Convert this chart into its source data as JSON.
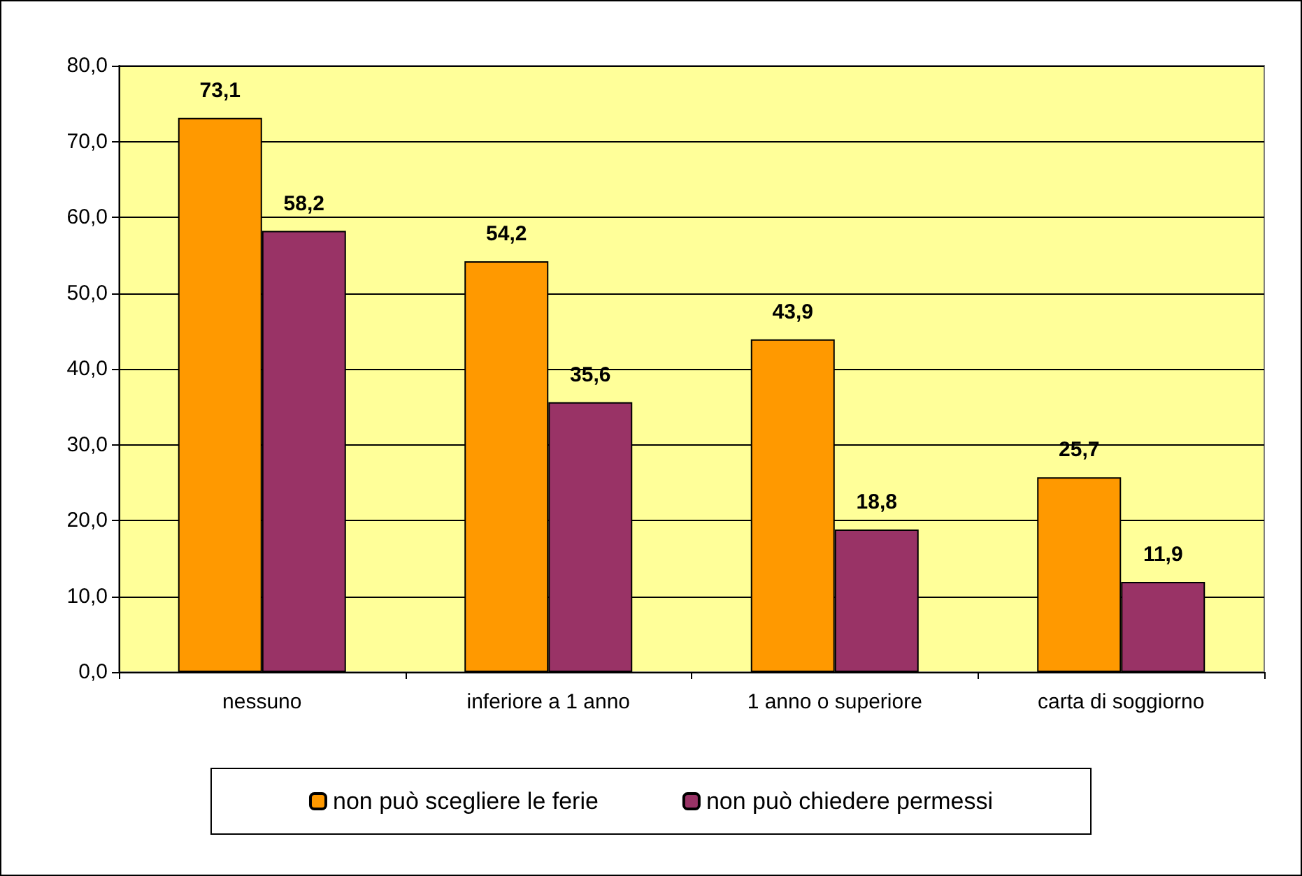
{
  "chart_data": {
    "type": "bar",
    "categories": [
      "nessuno",
      "inferiore a 1 anno",
      "1 anno o superiore",
      "carta di soggiorno"
    ],
    "series": [
      {
        "name": "non può scegliere le ferie",
        "color": "#ff9900",
        "values": [
          73.1,
          54.2,
          43.9,
          25.7
        ],
        "value_labels": [
          "73,1",
          "54,2",
          "43,9",
          "25,7"
        ]
      },
      {
        "name": "non può chiedere permessi",
        "color": "#993366",
        "values": [
          58.2,
          35.6,
          18.8,
          11.9
        ],
        "value_labels": [
          "58,2",
          "35,6",
          "18,8",
          "11,9"
        ]
      }
    ],
    "ylim": [
      0,
      80
    ],
    "yticks": [
      {
        "value": 0,
        "label": "0,0"
      },
      {
        "value": 10,
        "label": "10,0"
      },
      {
        "value": 20,
        "label": "20,0"
      },
      {
        "value": 30,
        "label": "30,0"
      },
      {
        "value": 40,
        "label": "40,0"
      },
      {
        "value": 50,
        "label": "50,0"
      },
      {
        "value": 60,
        "label": "60,0"
      },
      {
        "value": 70,
        "label": "70,0"
      },
      {
        "value": 80,
        "label": "80,0"
      }
    ],
    "grid": "y",
    "legend": "bottom"
  }
}
